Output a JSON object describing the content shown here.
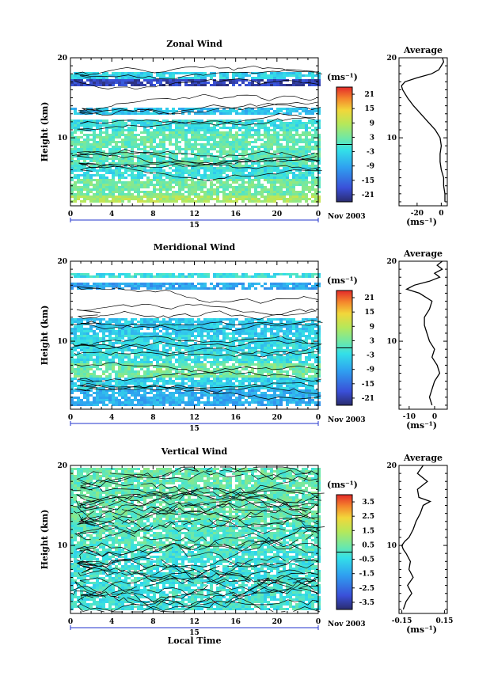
{
  "chart_data": [
    {
      "type": "heatmap",
      "title": "Zonal Wind",
      "ylabel": "Height (km)",
      "unit": "(ms⁻¹)",
      "x_ticks": [
        "0",
        "4",
        "8",
        "12",
        "16",
        "20",
        "0"
      ],
      "y_ticks": [
        "20",
        "10"
      ],
      "xlim": [
        0,
        24
      ],
      "ylim": [
        1.5,
        20
      ],
      "date_label": "Nov 2003",
      "day_label": "15",
      "colorbar": {
        "ticks": [
          "21",
          "15",
          "9",
          "3",
          "-3",
          "-9",
          "-15",
          "-21"
        ],
        "range": [
          -24,
          24
        ]
      },
      "bands": [
        {
          "y": [
            2,
            3
          ],
          "value": 8
        },
        {
          "y": [
            3,
            5
          ],
          "value": 3
        },
        {
          "y": [
            5,
            6.5
          ],
          "value": -2
        },
        {
          "y": [
            6.5,
            9
          ],
          "value": 1
        },
        {
          "y": [
            9,
            11
          ],
          "value": 2
        },
        {
          "y": [
            11,
            12.5
          ],
          "value": -2
        },
        {
          "y": [
            13,
            14
          ],
          "value": -6
        },
        {
          "y": [
            16.5,
            17.5
          ],
          "value": -20
        },
        {
          "y": [
            17.5,
            18.5
          ],
          "value": -4
        }
      ],
      "average": {
        "title": "Average",
        "x_ticks": [
          "-20",
          "0"
        ],
        "xlim": [
          -35,
          5
        ],
        "unit": "(ms⁻¹)",
        "profile": [
          [
            2,
            3
          ],
          [
            3,
            3
          ],
          [
            4,
            2
          ],
          [
            5,
            2
          ],
          [
            6,
            0
          ],
          [
            7,
            -1
          ],
          [
            8,
            -1
          ],
          [
            9,
            0
          ],
          [
            10,
            -1
          ],
          [
            11,
            -5
          ],
          [
            12,
            -11
          ],
          [
            13,
            -17
          ],
          [
            14,
            -23
          ],
          [
            15,
            -28
          ],
          [
            16,
            -32
          ],
          [
            16.5,
            -33
          ],
          [
            17,
            -30
          ],
          [
            17.5,
            -20
          ],
          [
            18,
            -8
          ],
          [
            18.5,
            -2
          ],
          [
            19,
            0
          ],
          [
            19.5,
            2
          ],
          [
            20,
            1
          ]
        ]
      }
    },
    {
      "type": "heatmap",
      "title": "Meridional Wind",
      "ylabel": "Height (km)",
      "unit": "(ms⁻¹)",
      "x_ticks": [
        "0",
        "4",
        "8",
        "12",
        "16",
        "20",
        "0"
      ],
      "y_ticks": [
        "20",
        "10"
      ],
      "xlim": [
        0,
        24
      ],
      "ylim": [
        1.5,
        20
      ],
      "date_label": "Nov 2003",
      "day_label": "15",
      "colorbar": {
        "ticks": [
          "21",
          "15",
          "9",
          "3",
          "-3",
          "-9",
          "-15",
          "-21"
        ],
        "range": [
          -24,
          24
        ]
      },
      "bands": [
        {
          "y": [
            2,
            4
          ],
          "value": -8
        },
        {
          "y": [
            4,
            5.5
          ],
          "value": -4
        },
        {
          "y": [
            5.5,
            7.5
          ],
          "value": 3
        },
        {
          "y": [
            7.5,
            9
          ],
          "value": -2
        },
        {
          "y": [
            9,
            11
          ],
          "value": -3
        },
        {
          "y": [
            11,
            13
          ],
          "value": -5
        },
        {
          "y": [
            16.5,
            17.5
          ],
          "value": -9
        },
        {
          "y": [
            18,
            18.8
          ],
          "value": -2
        }
      ],
      "average": {
        "title": "Average",
        "x_ticks": [
          "-10",
          "0"
        ],
        "xlim": [
          -14,
          5
        ],
        "unit": "(ms⁻¹)",
        "profile": [
          [
            2,
            -1
          ],
          [
            3,
            -2
          ],
          [
            4,
            -1
          ],
          [
            5,
            0
          ],
          [
            6,
            2
          ],
          [
            7,
            1
          ],
          [
            8,
            -1
          ],
          [
            9,
            0
          ],
          [
            10,
            -2
          ],
          [
            11,
            -3
          ],
          [
            12,
            -4
          ],
          [
            13,
            -4
          ],
          [
            14,
            -2
          ],
          [
            15,
            -1
          ],
          [
            16,
            -6
          ],
          [
            16.5,
            -11
          ],
          [
            17,
            -8
          ],
          [
            17.5,
            -2
          ],
          [
            18,
            2
          ],
          [
            18.5,
            0
          ],
          [
            19,
            3
          ],
          [
            19.5,
            1
          ],
          [
            20,
            3
          ]
        ]
      }
    },
    {
      "type": "heatmap",
      "title": "Vertical Wind",
      "ylabel": "Height (km)",
      "xlabel": "Local Time",
      "unit": "(ms⁻¹)",
      "x_ticks": [
        "0",
        "4",
        "8",
        "12",
        "16",
        "20",
        "0"
      ],
      "y_ticks": [
        "20",
        "10"
      ],
      "xlim": [
        0,
        24
      ],
      "ylim": [
        1.5,
        20
      ],
      "date_label": "Nov 2003",
      "day_label": "15",
      "colorbar": {
        "ticks": [
          "3.5",
          "2.5",
          "1.5",
          "0.5",
          "-0.5",
          "-1.5",
          "-2.5",
          "-3.5"
        ],
        "range": [
          -4,
          4
        ]
      },
      "bands": [
        {
          "y": [
            2,
            9.5
          ],
          "value": -0.2
        },
        {
          "y": [
            9.5,
            13
          ],
          "value": 0.1
        },
        {
          "y": [
            13,
            16
          ],
          "value": 0.3
        },
        {
          "y": [
            16,
            20
          ],
          "value": 0.3
        }
      ],
      "average": {
        "title": "Average",
        "x_ticks": [
          "-0.15",
          "0.15"
        ],
        "xlim": [
          -0.17,
          0.17
        ],
        "unit": "(ms⁻¹)",
        "profile": [
          [
            2,
            -0.14
          ],
          [
            3,
            -0.12
          ],
          [
            4,
            -0.08
          ],
          [
            5,
            -0.11
          ],
          [
            6,
            -0.07
          ],
          [
            7,
            -0.1
          ],
          [
            8,
            -0.09
          ],
          [
            9,
            -0.12
          ],
          [
            9.5,
            -0.14
          ],
          [
            10,
            -0.15
          ],
          [
            10.5,
            -0.13
          ],
          [
            11,
            -0.1
          ],
          [
            12,
            -0.07
          ],
          [
            13,
            -0.05
          ],
          [
            14,
            -0.02
          ],
          [
            15,
            0.0
          ],
          [
            15.5,
            0.05
          ],
          [
            16,
            -0.03
          ],
          [
            17,
            -0.04
          ],
          [
            18,
            0.03
          ],
          [
            19,
            -0.04
          ],
          [
            20,
            0.0
          ]
        ]
      }
    }
  ]
}
